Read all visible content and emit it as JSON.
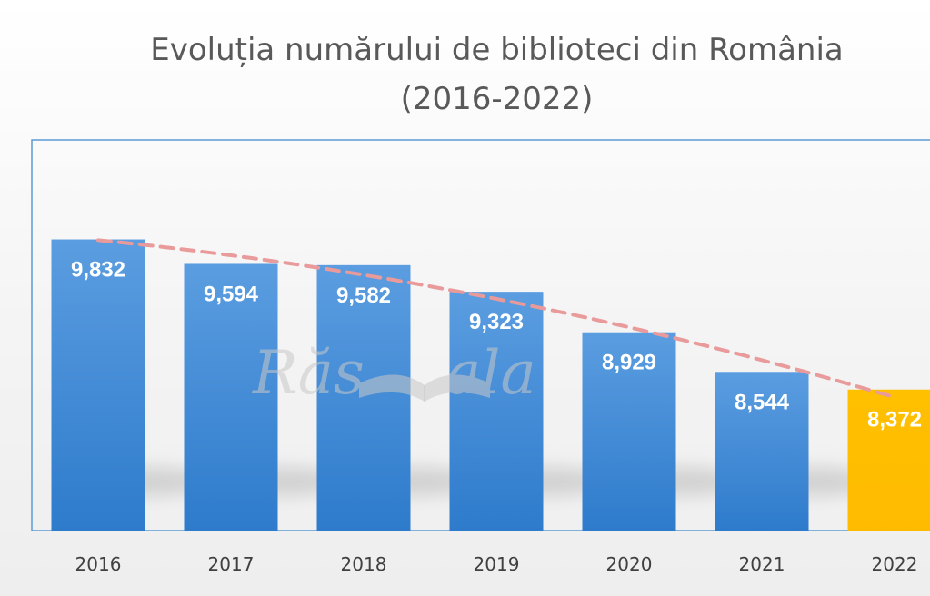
{
  "chart_data": {
    "type": "bar",
    "title": "Evoluția numărului de biblioteci din România",
    "subtitle": "(2016-2022)",
    "categories": [
      "2016",
      "2017",
      "2018",
      "2019",
      "2020",
      "2021",
      "2022"
    ],
    "values": [
      9832,
      9594,
      9582,
      9323,
      8929,
      8544,
      8372
    ],
    "value_labels": [
      "9,832",
      "9,594",
      "9,582",
      "9,323",
      "8,929",
      "8,544",
      "8,372"
    ],
    "xlabel": "",
    "ylabel": "",
    "ylim": [
      7000,
      10800
    ],
    "grid": false,
    "legend": "none",
    "trendline": {
      "type": "polynomial",
      "style": "dashed",
      "color": "#e99a9a"
    },
    "colors": {
      "bar": "#3a87d0",
      "bar_highlight": "#ffc000",
      "label": "#ffffff",
      "axis_text": "#404040",
      "frame": "#5b9bd5"
    },
    "highlight_index": 6
  },
  "watermark": {
    "left": "Răs",
    "right": "ala"
  }
}
